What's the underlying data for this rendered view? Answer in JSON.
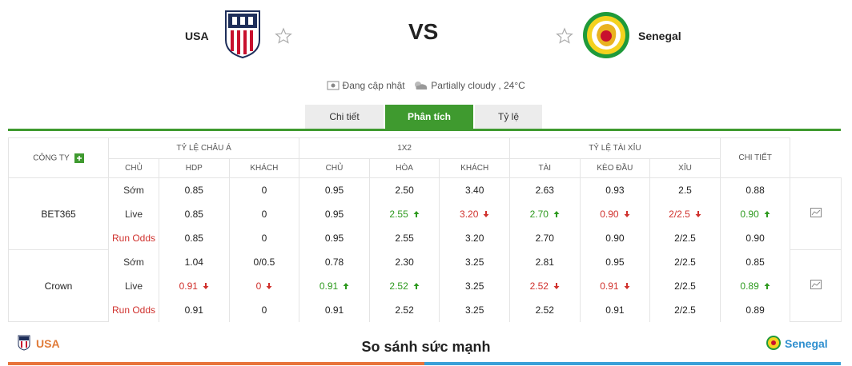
{
  "header": {
    "home": "USA",
    "vs": "VS",
    "away": "Senegal",
    "status": "Đang cập nhật",
    "weather": "Partially cloudy , 24°C"
  },
  "tabs": [
    "Chi tiết",
    "Phân tích",
    "Tỷ lệ"
  ],
  "active_tab": 1,
  "table": {
    "company_header": "CÔNG TY",
    "groups": [
      {
        "title": "TỶ LỆ CHÂU Á",
        "columns": [
          "CHỦ",
          "HDP",
          "KHÁCH"
        ]
      },
      {
        "title": "1X2",
        "columns": [
          "CHỦ",
          "HÒA",
          "KHÁCH"
        ]
      },
      {
        "title": "TỶ LỆ TÀI XỈU",
        "columns": [
          "TÀI",
          "KÈO ĐẦU",
          "XỈU"
        ]
      }
    ],
    "detail_header": "CHI TIẾT",
    "companies": [
      {
        "name": "BET365",
        "rows": [
          {
            "label": "Sớm",
            "values": [
              "0.85",
              "0",
              "0.95",
              "2.50",
              "3.40",
              "2.63",
              "0.93",
              "2.5",
              "0.88"
            ],
            "trends": [
              null,
              null,
              null,
              null,
              null,
              null,
              null,
              null,
              null
            ]
          },
          {
            "label": "Live",
            "values": [
              "0.85",
              "0",
              "0.95",
              "2.55",
              "3.20",
              "2.70",
              "0.90",
              "2/2.5",
              "0.90"
            ],
            "trends": [
              null,
              null,
              null,
              "up",
              "down",
              "up",
              "down",
              "down",
              "up"
            ]
          },
          {
            "label": "Run Odds",
            "values": [
              "0.85",
              "0",
              "0.95",
              "2.55",
              "3.20",
              "2.70",
              "0.90",
              "2/2.5",
              "0.90"
            ],
            "trends": [
              null,
              null,
              null,
              null,
              null,
              null,
              null,
              null,
              null
            ]
          }
        ]
      },
      {
        "name": "Crown",
        "rows": [
          {
            "label": "Sớm",
            "values": [
              "1.04",
              "0/0.5",
              "0.78",
              "2.30",
              "3.25",
              "2.81",
              "0.95",
              "2/2.5",
              "0.85"
            ],
            "trends": [
              null,
              null,
              null,
              null,
              null,
              null,
              null,
              null,
              null
            ]
          },
          {
            "label": "Live",
            "values": [
              "0.91",
              "0",
              "0.91",
              "2.52",
              "3.25",
              "2.52",
              "0.91",
              "2/2.5",
              "0.89"
            ],
            "trends": [
              "down",
              "down",
              "up",
              "up",
              null,
              "down",
              "down",
              null,
              "up"
            ]
          },
          {
            "label": "Run Odds",
            "values": [
              "0.91",
              "0",
              "0.91",
              "2.52",
              "3.25",
              "2.52",
              "0.91",
              "2/2.5",
              "0.89"
            ],
            "trends": [
              null,
              null,
              null,
              null,
              null,
              null,
              null,
              null,
              null
            ]
          }
        ]
      }
    ]
  },
  "footer": {
    "home": "USA",
    "title": "So sánh sức mạnh",
    "away": "Senegal"
  }
}
